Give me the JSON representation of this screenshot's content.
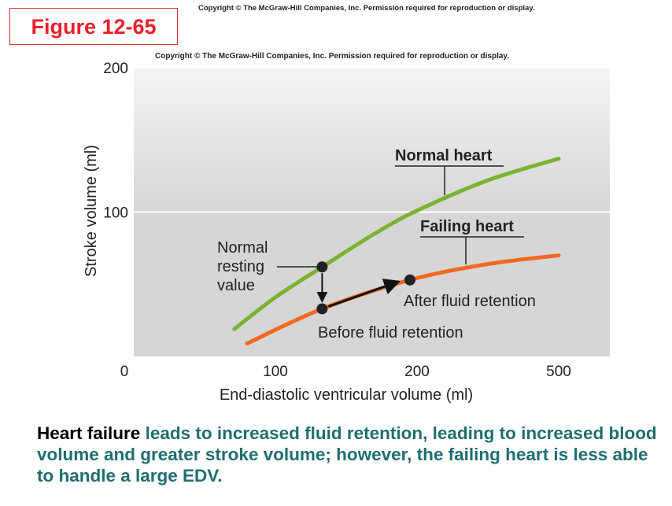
{
  "figure_label": "Figure 12-65",
  "copyright": [
    "Copyright © The McGraw-Hill Companies, Inc. Permission required for reproduction or display.",
    "Copyright © The McGraw-Hill Companies, Inc. Permission required for reproduction or display."
  ],
  "caption": {
    "lead": "Heart failure",
    "rest": " leads to increased fluid retention, leading to increased blood volume and greater stroke volume; however, the failing heart is less able to handle a large EDV."
  },
  "chart_data": {
    "type": "line",
    "xlabel": "End-diastolic ventricular volume (ml)",
    "ylabel": "Stroke volume (ml)",
    "xlim": [
      0,
      610
    ],
    "xticks": [
      0,
      100,
      200,
      500
    ],
    "ylim": [
      0,
      200
    ],
    "yticks": [
      100,
      200
    ],
    "grid": true,
    "series": [
      {
        "name": "Normal heart",
        "color": "#7cb233",
        "x": [
          71,
          100,
          133,
          170,
          200,
          350,
          500
        ],
        "values": [
          19,
          41,
          62,
          85,
          101,
          122,
          137
        ]
      },
      {
        "name": "Failing heart",
        "color": "#f26a21",
        "x": [
          80,
          133,
          195,
          350,
          500
        ],
        "values": [
          9,
          33,
          53,
          64,
          70
        ]
      }
    ],
    "points": [
      {
        "label": "Normal resting value",
        "x": 133,
        "y": 62
      },
      {
        "label": "Before fluid retention",
        "x": 133,
        "y": 33
      },
      {
        "label": "After fluid retention",
        "x": 195,
        "y": 53
      }
    ]
  }
}
